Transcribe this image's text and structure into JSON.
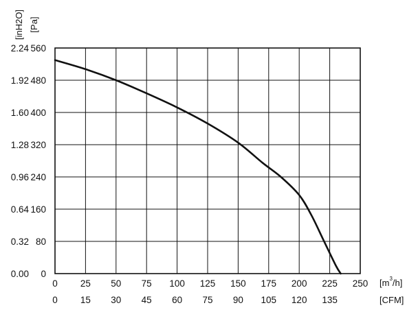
{
  "chart_data": {
    "type": "line",
    "title": "",
    "x_primary": {
      "unit_prefix": "[m",
      "unit_sup": "3",
      "unit_suffix": "/h]",
      "range": [
        0,
        250
      ],
      "ticks": [
        0,
        25,
        50,
        75,
        100,
        125,
        150,
        175,
        200,
        225,
        250
      ],
      "tick_labels": [
        "0",
        "25",
        "50",
        "75",
        "100",
        "125",
        "150",
        "175",
        "200",
        "225",
        "250"
      ]
    },
    "x_secondary": {
      "unit": "[CFM]",
      "tick_labels": [
        "0",
        "15",
        "30",
        "45",
        "60",
        "75",
        "90",
        "105",
        "120",
        "135"
      ]
    },
    "y_primary": {
      "unit": "[inH2O]",
      "range": [
        0,
        2.24
      ],
      "ticks": [
        0,
        0.32,
        0.64,
        0.96,
        1.28,
        1.6,
        1.92,
        2.24
      ],
      "tick_labels": [
        "0.00",
        "0.32",
        "0.64",
        "0.96",
        "1.28",
        "1.60",
        "1.92",
        "2.24"
      ]
    },
    "y_secondary": {
      "unit": "[Pa]",
      "tick_labels": [
        "0",
        "80",
        "160",
        "240",
        "320",
        "400",
        "480",
        "560"
      ]
    },
    "grid": true,
    "series": [
      {
        "x": [
          0,
          25,
          50,
          75,
          100,
          125,
          150,
          170,
          185,
          200,
          210,
          220,
          230,
          234
        ],
        "y": [
          2.12,
          2.03,
          1.92,
          1.79,
          1.65,
          1.49,
          1.3,
          1.1,
          0.96,
          0.78,
          0.58,
          0.33,
          0.08,
          0.0
        ]
      }
    ]
  }
}
